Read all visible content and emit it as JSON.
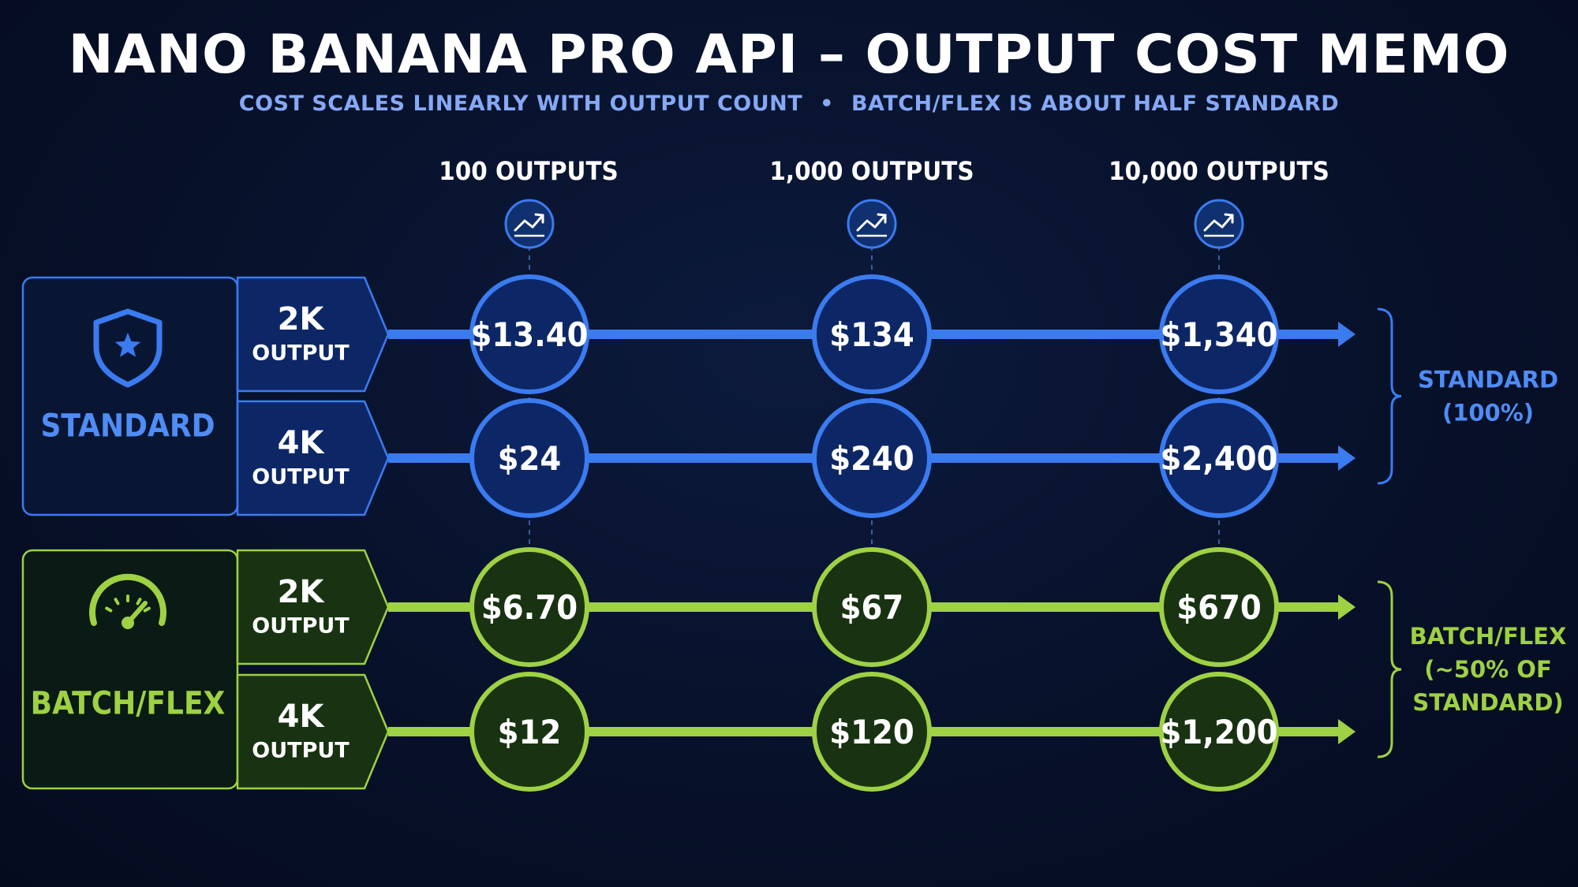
{
  "header": {
    "title": "NANO BANANA PRO API – OUTPUT COST MEMO",
    "subtitle_left": "COST SCALES LINEARLY WITH OUTPUT COUNT",
    "subtitle_separator": "•",
    "subtitle_right": "BATCH/FLEX IS ABOUT HALF STANDARD"
  },
  "columns": [
    "100 OUTPUTS",
    "1,000 OUTPUTS",
    "10,000 OUTPUTS"
  ],
  "column_icon": "trend-up-icon",
  "tiers": [
    {
      "name": "STANDARD",
      "icon": "shield-star-icon",
      "bracket_lines": [
        "STANDARD",
        "(100%)"
      ],
      "color": "#3b7bf0",
      "rows": [
        {
          "label_top": "2K",
          "label_bottom": "OUTPUT",
          "values": [
            "$13.40",
            "$134",
            "$1,340"
          ]
        },
        {
          "label_top": "4K",
          "label_bottom": "OUTPUT",
          "values": [
            "$24",
            "$240",
            "$2,400"
          ]
        }
      ]
    },
    {
      "name": "BATCH/FLEX",
      "icon": "speedometer-icon",
      "bracket_lines": [
        "BATCH/FLEX",
        "(~50% OF",
        "STANDARD)"
      ],
      "color": "#9ed143",
      "rows": [
        {
          "label_top": "2K",
          "label_bottom": "OUTPUT",
          "values": [
            "$6.70",
            "$67",
            "$670"
          ]
        },
        {
          "label_top": "4K",
          "label_bottom": "OUTPUT",
          "values": [
            "$12",
            "$120",
            "$1,200"
          ]
        }
      ]
    }
  ],
  "colors": {
    "background": "#07112a",
    "standard_accent": "#3b7bf0",
    "standard_fill": "#0d2766",
    "batch_accent": "#9ed143",
    "batch_fill": "#193312",
    "subtitle": "#86a9f5"
  }
}
